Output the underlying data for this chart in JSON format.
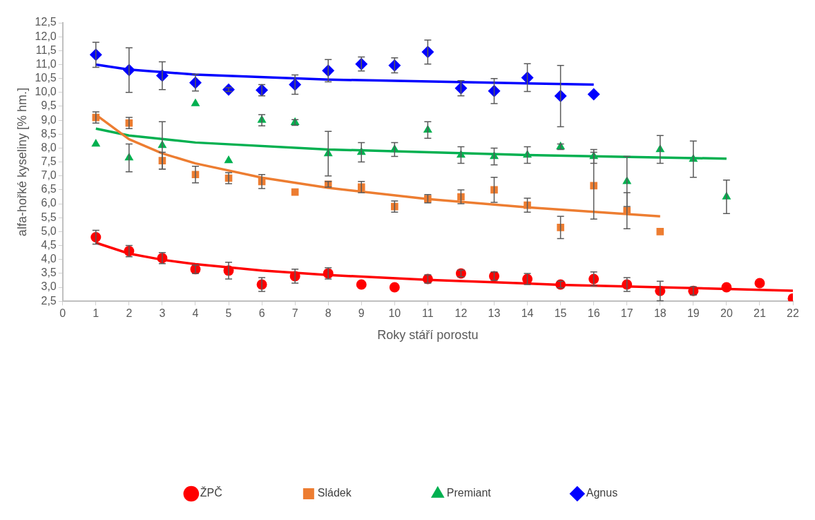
{
  "chart_data": {
    "type": "scatter",
    "xlabel": "Roky stáří porostu",
    "ylabel": "alfa-hořké kyseliny [% hm.]",
    "xlim": [
      0,
      22
    ],
    "xticks": [
      0,
      1,
      2,
      3,
      4,
      5,
      6,
      7,
      8,
      9,
      10,
      11,
      12,
      13,
      14,
      15,
      16,
      17,
      18,
      19,
      20,
      21,
      22
    ],
    "ylim": [
      2.5,
      12.5
    ],
    "yticks": [
      {
        "value": 2.5,
        "label": "2,5"
      },
      {
        "value": 3,
        "label": "3,0"
      },
      {
        "value": 3.5,
        "label": "3,5"
      },
      {
        "value": 4,
        "label": "4,0"
      },
      {
        "value": 4.5,
        "label": "4,5"
      },
      {
        "value": 5,
        "label": "5,0"
      },
      {
        "value": 5.5,
        "label": "5,5"
      },
      {
        "value": 6,
        "label": "6,0"
      },
      {
        "value": 6.5,
        "label": "6,5"
      },
      {
        "value": 7,
        "label": "7,0"
      },
      {
        "value": 7.5,
        "label": "7,5"
      },
      {
        "value": 8,
        "label": "8,0"
      },
      {
        "value": 8.5,
        "label": "8,5"
      },
      {
        "value": 9,
        "label": "9,0"
      },
      {
        "value": 9.5,
        "label": "9,5"
      },
      {
        "value": 10,
        "label": "10,0"
      },
      {
        "value": 10.5,
        "label": "10,5"
      },
      {
        "value": 11,
        "label": "11,0"
      },
      {
        "value": 11.5,
        "label": "11,5"
      },
      {
        "value": 12,
        "label": "12,0"
      },
      {
        "value": 12.5,
        "label": "12,5"
      }
    ],
    "grid": false,
    "legend": "bottom",
    "series": [
      {
        "name": "ŽPČ",
        "marker": "circle",
        "color": "#ff0000",
        "x": [
          1,
          2,
          3,
          4,
          5,
          6,
          7,
          8,
          9,
          10,
          11,
          12,
          13,
          14,
          15,
          16,
          17,
          18,
          19,
          20,
          21,
          22
        ],
        "values": [
          4.8,
          4.3,
          4.05,
          3.65,
          3.6,
          3.1,
          3.4,
          3.5,
          3.1,
          3.0,
          3.3,
          3.5,
          3.4,
          3.3,
          3.1,
          3.3,
          3.1,
          2.87,
          2.87,
          3.0,
          3.15,
          2.6
        ],
        "errors": [
          0.25,
          0.2,
          0.2,
          0.15,
          0.3,
          0.25,
          0.25,
          0.2,
          null,
          null,
          0.15,
          0.12,
          0.15,
          0.2,
          0.12,
          0.25,
          0.25,
          0.35,
          0.15,
          null,
          null,
          null
        ]
      },
      {
        "name": "Sládek",
        "marker": "square",
        "color": "#ed7d31",
        "x": [
          1,
          2,
          3,
          4,
          5,
          6,
          7,
          8,
          9,
          10,
          11,
          12,
          13,
          14,
          15,
          16,
          17,
          18
        ],
        "values": [
          9.1,
          8.9,
          7.55,
          7.05,
          6.92,
          6.8,
          6.42,
          6.7,
          6.6,
          5.9,
          6.18,
          6.25,
          6.5,
          5.95,
          5.15,
          6.65,
          5.75,
          5.0
        ],
        "errors": [
          0.2,
          0.2,
          0.3,
          0.3,
          0.2,
          0.25,
          null,
          0.1,
          0.2,
          0.2,
          0.15,
          0.25,
          0.45,
          0.25,
          0.4,
          1.2,
          0.65,
          null
        ]
      },
      {
        "name": "Premiant",
        "marker": "triangle",
        "color": "#00b050",
        "x": [
          1,
          2,
          3,
          4,
          5,
          6,
          7,
          8,
          9,
          10,
          11,
          12,
          13,
          14,
          15,
          16,
          17,
          18,
          19,
          20
        ],
        "values": [
          8.15,
          7.65,
          8.1,
          9.6,
          7.55,
          9.0,
          8.92,
          7.8,
          7.85,
          7.95,
          8.65,
          7.75,
          7.7,
          7.75,
          8.05,
          7.7,
          6.8,
          7.95,
          7.6,
          6.25
        ],
        "errors": [
          null,
          0.5,
          0.85,
          null,
          null,
          0.2,
          0.1,
          0.8,
          0.35,
          0.25,
          0.3,
          0.3,
          0.3,
          0.3,
          0.1,
          0.25,
          0.9,
          0.5,
          0.65,
          0.6
        ]
      },
      {
        "name": "Agnus",
        "marker": "diamond",
        "color": "#0000ff",
        "x": [
          1,
          2,
          3,
          4,
          5,
          6,
          7,
          8,
          9,
          10,
          11,
          12,
          13,
          14,
          15,
          16
        ],
        "values": [
          11.35,
          10.8,
          10.6,
          10.35,
          10.1,
          10.08,
          10.28,
          10.78,
          11.02,
          10.97,
          11.45,
          10.15,
          10.05,
          10.53,
          9.87,
          9.93
        ],
        "errors": [
          0.45,
          0.8,
          0.5,
          0.3,
          0.07,
          0.2,
          0.35,
          0.4,
          0.25,
          0.27,
          0.43,
          0.27,
          0.45,
          0.5,
          1.1,
          null
        ]
      },
      {
        "type": "line",
        "marker": "none",
        "color": "#ff0000",
        "x": [
          1,
          2,
          3,
          4,
          6,
          8,
          11,
          15,
          22
        ],
        "values": [
          4.6,
          4.21,
          3.99,
          3.83,
          3.6,
          3.44,
          3.27,
          3.09,
          2.88
        ]
      },
      {
        "type": "line",
        "marker": "none",
        "color": "#ed7d31",
        "x": [
          1,
          2,
          3,
          4,
          6,
          8,
          11,
          14,
          18
        ],
        "values": [
          9.2,
          8.32,
          7.81,
          7.45,
          6.94,
          6.57,
          6.17,
          5.87,
          5.55
        ]
      },
      {
        "type": "line",
        "marker": "none",
        "color": "#00b050",
        "x": [
          1,
          2,
          4,
          8,
          14,
          20
        ],
        "values": [
          8.7,
          8.45,
          8.2,
          7.95,
          7.75,
          7.62
        ]
      },
      {
        "type": "line",
        "marker": "none",
        "color": "#0000ff",
        "x": [
          1,
          2,
          4,
          8,
          16
        ],
        "values": [
          11.0,
          10.82,
          10.64,
          10.46,
          10.28
        ]
      }
    ]
  }
}
